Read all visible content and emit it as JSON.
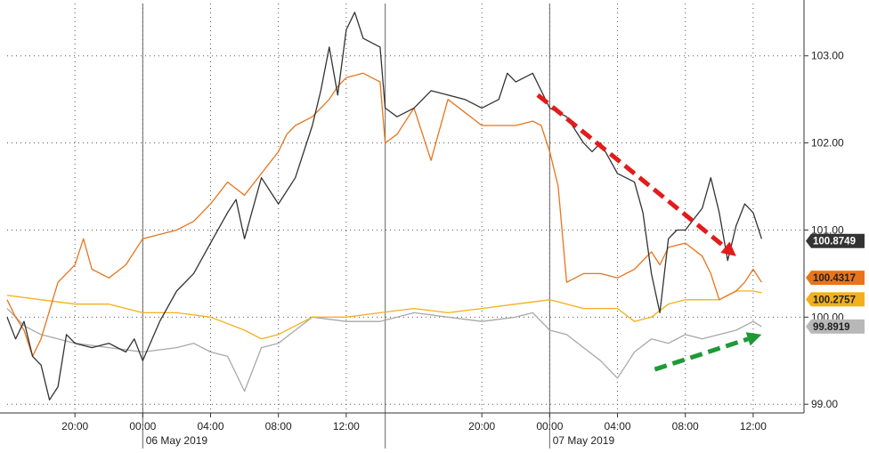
{
  "chart_data": {
    "type": "line",
    "title": "",
    "xlabel": "",
    "ylabel": "",
    "ylim": [
      98.9,
      103.6
    ],
    "y_ticks": [
      "99.00",
      "100.00",
      "101.00",
      "102.00",
      "103.00"
    ],
    "y_tick_values": [
      99,
      100,
      101,
      102,
      103
    ],
    "x_ticks": [
      {
        "label": "20:00",
        "x": 4
      },
      {
        "label": "00:00",
        "x": 8
      },
      {
        "label": "04:00",
        "x": 12
      },
      {
        "label": "08:00",
        "x": 16
      },
      {
        "label": "12:00",
        "x": 20
      },
      {
        "label": "20:00",
        "x": 28
      },
      {
        "label": "00:00",
        "x": 32
      },
      {
        "label": "04:00",
        "x": 36
      },
      {
        "label": "08:00",
        "x": 40
      },
      {
        "label": "12:00",
        "x": 44
      }
    ],
    "x_range": [
      0,
      47
    ],
    "date_labels": [
      {
        "label": "06 May 2019",
        "x": 10
      },
      {
        "label": "07 May 2019",
        "x": 34
      }
    ],
    "day_dividers": [
      8,
      32
    ],
    "session_breaks": [
      22.3
    ],
    "grid": true,
    "legend": "none",
    "series": [
      {
        "color": "#333333",
        "last_label": "100.8749",
        "last_value": 100.8749,
        "points": [
          [
            0,
            100
          ],
          [
            0.5,
            99.75
          ],
          [
            1,
            99.95
          ],
          [
            1.5,
            99.55
          ],
          [
            2,
            99.45
          ],
          [
            2.5,
            99.05
          ],
          [
            3,
            99.2
          ],
          [
            3.5,
            99.8
          ],
          [
            4,
            99.7
          ],
          [
            5,
            99.65
          ],
          [
            6,
            99.7
          ],
          [
            7,
            99.6
          ],
          [
            7.5,
            99.75
          ],
          [
            8,
            99.5
          ],
          [
            9,
            99.95
          ],
          [
            10,
            100.3
          ],
          [
            11,
            100.5
          ],
          [
            12,
            100.85
          ],
          [
            13,
            101.2
          ],
          [
            13.5,
            101.35
          ],
          [
            14,
            100.9
          ],
          [
            15,
            101.6
          ],
          [
            16,
            101.3
          ],
          [
            17,
            101.6
          ],
          [
            18,
            102.2
          ],
          [
            18.5,
            102.6
          ],
          [
            19,
            103.1
          ],
          [
            19.5,
            102.55
          ],
          [
            20,
            103.3
          ],
          [
            20.5,
            103.5
          ],
          [
            21,
            103.2
          ],
          [
            22,
            103.1
          ],
          [
            22.3,
            102.4
          ],
          [
            23,
            102.3
          ],
          [
            24,
            102.4
          ],
          [
            25,
            102.6
          ],
          [
            26,
            102.55
          ],
          [
            27,
            102.5
          ],
          [
            28,
            102.4
          ],
          [
            29,
            102.5
          ],
          [
            29.5,
            102.8
          ],
          [
            30,
            102.7
          ],
          [
            31,
            102.8
          ],
          [
            31.5,
            102.6
          ],
          [
            32,
            102.4
          ],
          [
            33,
            102.3
          ],
          [
            34,
            102.0
          ],
          [
            34.5,
            101.9
          ],
          [
            35,
            102.0
          ],
          [
            36,
            101.65
          ],
          [
            37,
            101.55
          ],
          [
            37.5,
            101.2
          ],
          [
            38,
            100.5
          ],
          [
            38.5,
            100.05
          ],
          [
            39,
            100.9
          ],
          [
            39.5,
            101.0
          ],
          [
            40,
            101.0
          ],
          [
            41,
            101.25
          ],
          [
            41.5,
            101.6
          ],
          [
            42,
            101.2
          ],
          [
            42.5,
            100.65
          ],
          [
            43,
            101.05
          ],
          [
            43.5,
            101.3
          ],
          [
            44,
            101.2
          ],
          [
            44.5,
            100.9
          ]
        ]
      },
      {
        "color": "#e8741c",
        "last_label": "100.4317",
        "last_value": 100.4317,
        "points": [
          [
            0,
            100.2
          ],
          [
            0.5,
            100.0
          ],
          [
            1,
            99.85
          ],
          [
            1.5,
            99.55
          ],
          [
            2,
            99.75
          ],
          [
            3,
            100.4
          ],
          [
            4,
            100.6
          ],
          [
            4.5,
            100.9
          ],
          [
            5,
            100.55
          ],
          [
            6,
            100.45
          ],
          [
            7,
            100.6
          ],
          [
            8,
            100.9
          ],
          [
            9,
            100.95
          ],
          [
            10,
            101.0
          ],
          [
            11,
            101.1
          ],
          [
            12,
            101.3
          ],
          [
            13,
            101.55
          ],
          [
            14,
            101.4
          ],
          [
            15,
            101.65
          ],
          [
            16,
            101.9
          ],
          [
            16.5,
            102.1
          ],
          [
            17,
            102.2
          ],
          [
            18,
            102.3
          ],
          [
            19,
            102.5
          ],
          [
            19.5,
            102.65
          ],
          [
            20,
            102.75
          ],
          [
            21,
            102.8
          ],
          [
            22,
            102.7
          ],
          [
            22.3,
            102.0
          ],
          [
            23,
            102.1
          ],
          [
            24,
            102.4
          ],
          [
            25,
            101.8
          ],
          [
            26,
            102.5
          ],
          [
            27,
            102.35
          ],
          [
            28,
            102.2
          ],
          [
            29,
            102.2
          ],
          [
            30,
            102.2
          ],
          [
            31,
            102.25
          ],
          [
            31.5,
            102.2
          ],
          [
            32,
            101.9
          ],
          [
            32.5,
            101.5
          ],
          [
            33,
            100.4
          ],
          [
            34,
            100.5
          ],
          [
            35,
            100.5
          ],
          [
            36,
            100.45
          ],
          [
            37,
            100.55
          ],
          [
            38,
            100.75
          ],
          [
            38.5,
            100.6
          ],
          [
            39,
            100.8
          ],
          [
            40,
            100.85
          ],
          [
            41,
            100.7
          ],
          [
            41.5,
            100.5
          ],
          [
            42,
            100.2
          ],
          [
            43,
            100.3
          ],
          [
            43.5,
            100.4
          ],
          [
            44,
            100.55
          ],
          [
            44.5,
            100.4
          ]
        ]
      },
      {
        "color": "#f2b01e",
        "last_label": "100.2757",
        "last_value": 100.2757,
        "points": [
          [
            0,
            100.25
          ],
          [
            2,
            100.2
          ],
          [
            4,
            100.15
          ],
          [
            6,
            100.15
          ],
          [
            8,
            100.05
          ],
          [
            10,
            100.05
          ],
          [
            12,
            100.0
          ],
          [
            14,
            99.85
          ],
          [
            15,
            99.75
          ],
          [
            16,
            99.8
          ],
          [
            17,
            99.9
          ],
          [
            18,
            100.0
          ],
          [
            20,
            100.0
          ],
          [
            22,
            100.05
          ],
          [
            24,
            100.1
          ],
          [
            26,
            100.05
          ],
          [
            28,
            100.1
          ],
          [
            30,
            100.15
          ],
          [
            32,
            100.2
          ],
          [
            34,
            100.1
          ],
          [
            36,
            100.1
          ],
          [
            37,
            99.95
          ],
          [
            38,
            100.0
          ],
          [
            39,
            100.15
          ],
          [
            40,
            100.2
          ],
          [
            42,
            100.2
          ],
          [
            43,
            100.3
          ],
          [
            44,
            100.3
          ],
          [
            44.5,
            100.28
          ]
        ]
      },
      {
        "color": "#a8a8a8",
        "last_label": "99.8919",
        "last_value": 99.8919,
        "points": [
          [
            0,
            100.1
          ],
          [
            1,
            99.9
          ],
          [
            2,
            99.8
          ],
          [
            4,
            99.7
          ],
          [
            6,
            99.65
          ],
          [
            8,
            99.6
          ],
          [
            10,
            99.65
          ],
          [
            11,
            99.7
          ],
          [
            12,
            99.6
          ],
          [
            13,
            99.55
          ],
          [
            14,
            99.15
          ],
          [
            15,
            99.65
          ],
          [
            16,
            99.7
          ],
          [
            17,
            99.85
          ],
          [
            18,
            100.0
          ],
          [
            20,
            99.95
          ],
          [
            22,
            99.95
          ],
          [
            24,
            100.05
          ],
          [
            26,
            100.0
          ],
          [
            28,
            99.95
          ],
          [
            30,
            100.0
          ],
          [
            31,
            100.05
          ],
          [
            32,
            99.85
          ],
          [
            33,
            99.8
          ],
          [
            34,
            99.65
          ],
          [
            35,
            99.5
          ],
          [
            36,
            99.3
          ],
          [
            36.5,
            99.45
          ],
          [
            37,
            99.6
          ],
          [
            38,
            99.75
          ],
          [
            39,
            99.7
          ],
          [
            40,
            99.8
          ],
          [
            41,
            99.75
          ],
          [
            42,
            99.8
          ],
          [
            43,
            99.85
          ],
          [
            44,
            99.95
          ],
          [
            44.5,
            99.89
          ]
        ]
      }
    ],
    "annotations": [
      {
        "type": "arrow",
        "color": "#e21b1b",
        "from": [
          31.3,
          102.55
        ],
        "to": [
          43.0,
          100.7
        ]
      },
      {
        "type": "arrow",
        "color": "#1d9a35",
        "from": [
          38.2,
          99.4
        ],
        "to": [
          44.5,
          99.8
        ]
      }
    ]
  }
}
